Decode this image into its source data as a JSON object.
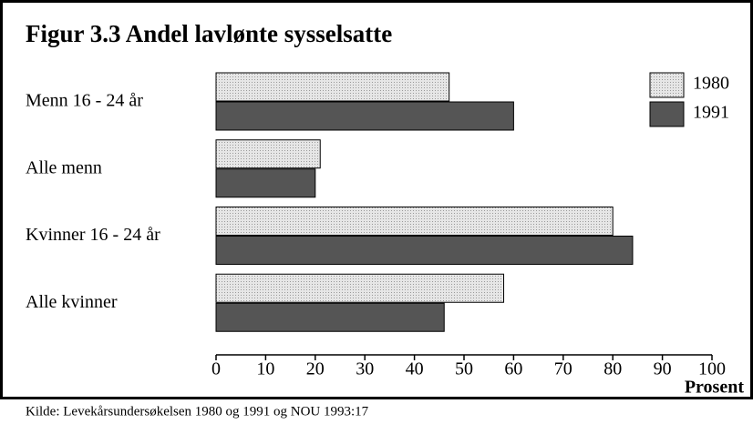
{
  "chart_data": {
    "type": "hbar",
    "title": "Figur 3.3 Andel lavlønte sysselsatte",
    "categories": [
      "Menn 16 - 24 år",
      "Alle menn",
      "Kvinner 16 - 24 år",
      "Alle kvinner"
    ],
    "series": [
      {
        "name": "1980",
        "color": "#d9d9d9",
        "values": [
          47,
          21,
          80,
          58
        ]
      },
      {
        "name": "1991",
        "color": "#555555",
        "values": [
          60,
          20,
          84,
          46
        ]
      }
    ],
    "xlim": [
      0,
      100
    ],
    "xticks": [
      0,
      10,
      20,
      30,
      40,
      50,
      60,
      70,
      80,
      90,
      100
    ],
    "x_label": "Prosent",
    "legend": "upper right",
    "source": "Kilde: Levekårsundersøkelsen 1980 og 1991 og NOU 1993:17"
  }
}
